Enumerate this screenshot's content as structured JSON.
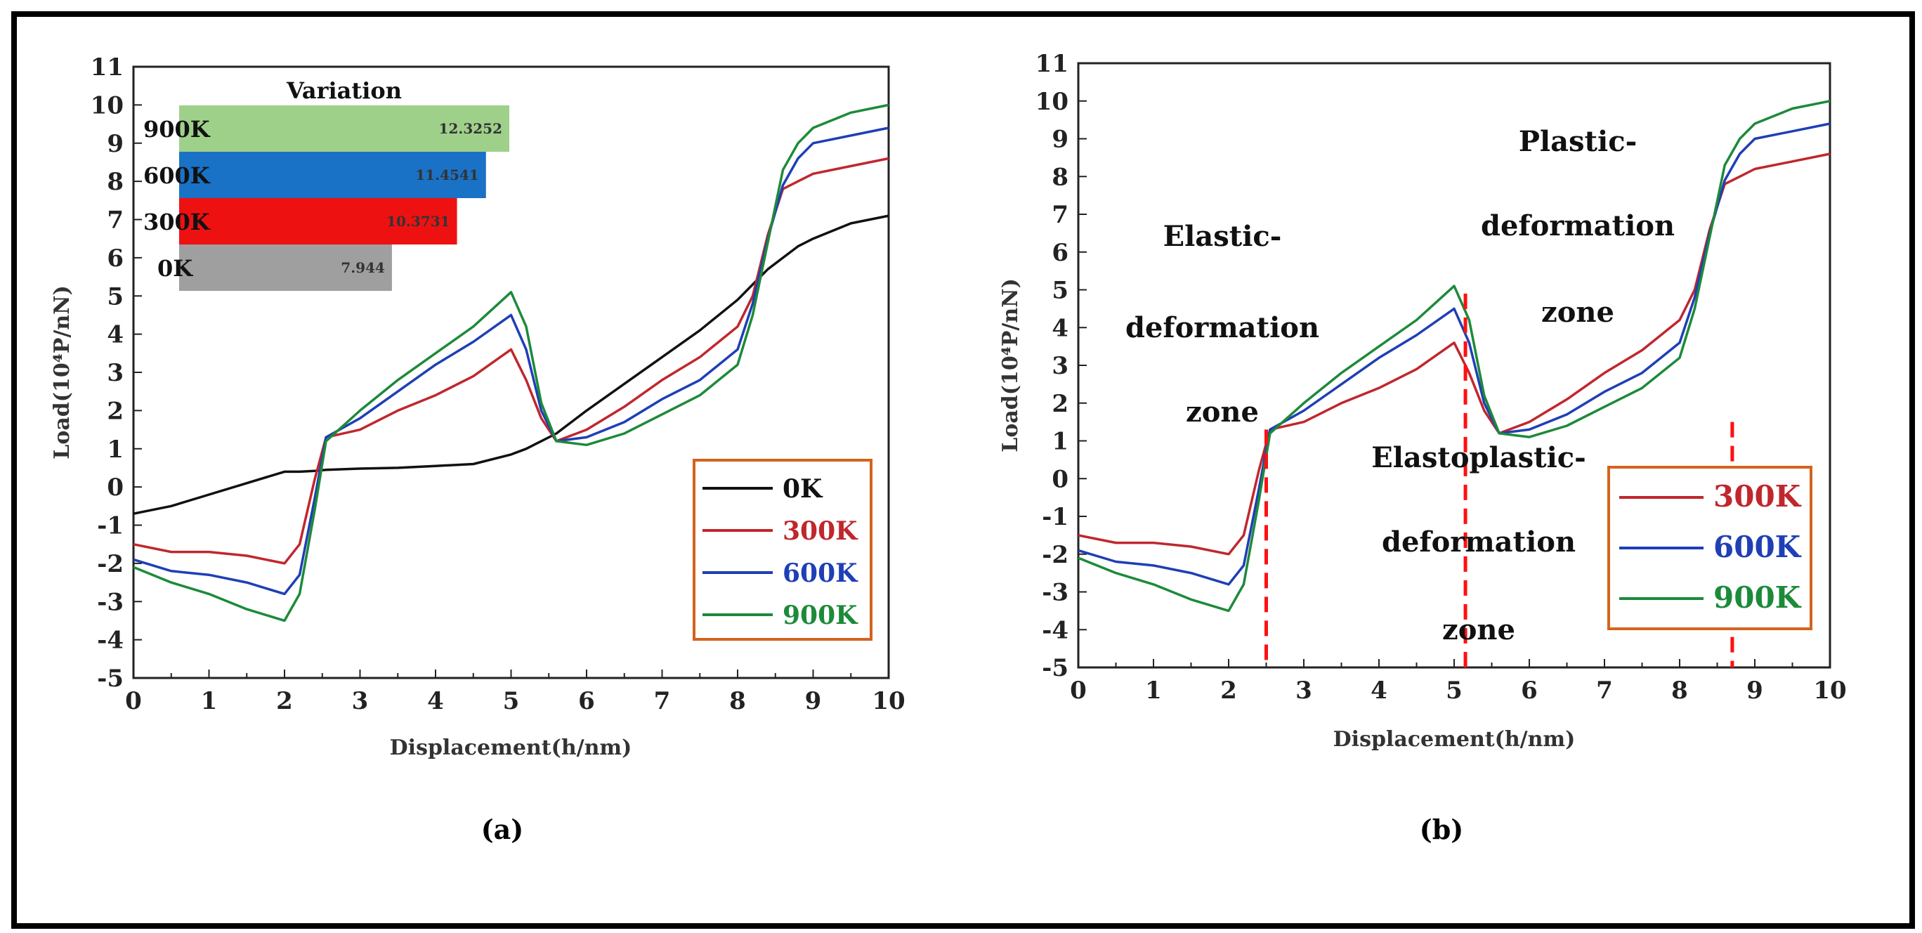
{
  "chart_data": [
    {
      "type": "line",
      "panel": "(a)",
      "xlabel": "Displacement(h/nm)",
      "ylabel": "Load(10⁴P/nN)",
      "xlim": [
        0,
        10
      ],
      "ylim": [
        -5,
        11
      ],
      "xticks": [
        0,
        1,
        2,
        3,
        4,
        5,
        6,
        7,
        8,
        9,
        10
      ],
      "yticks": [
        -5,
        -4,
        -3,
        -2,
        -1,
        0,
        1,
        2,
        3,
        4,
        5,
        6,
        7,
        8,
        9,
        10,
        11
      ],
      "legend_position": "bottom-right",
      "x": [
        0,
        0.5,
        1,
        1.5,
        2,
        2.2,
        2.4,
        2.55,
        3,
        3.5,
        4,
        4.5,
        5,
        5.2,
        5.4,
        5.6,
        6,
        6.5,
        7,
        7.5,
        8,
        8.2,
        8.4,
        8.6,
        8.8,
        9,
        9.5,
        10
      ],
      "series": [
        {
          "name": "0K",
          "color": "#111111",
          "values": [
            -0.7,
            -0.5,
            -0.2,
            0.1,
            0.4,
            0.4,
            0.42,
            0.45,
            0.48,
            0.5,
            0.55,
            0.6,
            0.85,
            1.0,
            1.2,
            1.4,
            2.0,
            2.7,
            3.4,
            4.1,
            4.9,
            5.3,
            5.7,
            6.0,
            6.3,
            6.5,
            6.9,
            7.1
          ]
        },
        {
          "name": "300K",
          "color": "#c0272d",
          "values": [
            -1.5,
            -1.7,
            -1.7,
            -1.8,
            -2.0,
            -1.5,
            0.2,
            1.3,
            1.5,
            2.0,
            2.4,
            2.9,
            3.6,
            2.8,
            1.8,
            1.2,
            1.5,
            2.1,
            2.8,
            3.4,
            4.2,
            5.0,
            6.6,
            7.8,
            8.0,
            8.2,
            8.4,
            8.6
          ]
        },
        {
          "name": "600K",
          "color": "#1f3fb5",
          "values": [
            -1.9,
            -2.2,
            -2.3,
            -2.5,
            -2.8,
            -2.3,
            -0.3,
            1.3,
            1.8,
            2.5,
            3.2,
            3.8,
            4.5,
            3.6,
            2.0,
            1.2,
            1.3,
            1.7,
            2.3,
            2.8,
            3.6,
            4.8,
            6.5,
            7.9,
            8.6,
            9.0,
            9.2,
            9.4
          ]
        },
        {
          "name": "900K",
          "color": "#1d8a3a",
          "values": [
            -2.1,
            -2.5,
            -2.8,
            -3.2,
            -3.5,
            -2.8,
            -0.6,
            1.2,
            2.0,
            2.8,
            3.5,
            4.2,
            5.1,
            4.2,
            2.2,
            1.2,
            1.1,
            1.4,
            1.9,
            2.4,
            3.2,
            4.5,
            6.4,
            8.3,
            9.0,
            9.4,
            9.8,
            10.0
          ]
        }
      ],
      "inset": {
        "title": "Variation",
        "type": "bar",
        "orientation": "horizontal",
        "categories": [
          "900K",
          "600K",
          "300K",
          "0K"
        ],
        "values": [
          12.3252,
          11.4541,
          10.3731,
          7.944
        ],
        "value_labels": [
          "12.3252",
          "11.4541",
          "10.3731",
          "7.944"
        ],
        "colors": [
          "#9fd08a",
          "#1a72c6",
          "#ee1111",
          "#9f9f9f"
        ]
      },
      "caption": "(a)"
    },
    {
      "type": "line",
      "panel": "(b)",
      "xlabel": "Displacement(h/nm)",
      "ylabel": "Load(10⁴P/nN)",
      "xlim": [
        0,
        10
      ],
      "ylim": [
        -5,
        11
      ],
      "xticks": [
        0,
        1,
        2,
        3,
        4,
        5,
        6,
        7,
        8,
        9,
        10
      ],
      "yticks": [
        -5,
        -4,
        -3,
        -2,
        -1,
        0,
        1,
        2,
        3,
        4,
        5,
        6,
        7,
        8,
        9,
        10,
        11
      ],
      "legend_position": "bottom-right",
      "x": [
        0,
        0.5,
        1,
        1.5,
        2,
        2.2,
        2.4,
        2.55,
        3,
        3.5,
        4,
        4.5,
        5,
        5.2,
        5.4,
        5.6,
        6,
        6.5,
        7,
        7.5,
        8,
        8.2,
        8.4,
        8.6,
        8.8,
        9,
        9.5,
        10
      ],
      "series": [
        {
          "name": "300K",
          "color": "#c0272d",
          "values": [
            -1.5,
            -1.7,
            -1.7,
            -1.8,
            -2.0,
            -1.5,
            0.2,
            1.3,
            1.5,
            2.0,
            2.4,
            2.9,
            3.6,
            2.8,
            1.8,
            1.2,
            1.5,
            2.1,
            2.8,
            3.4,
            4.2,
            5.0,
            6.6,
            7.8,
            8.0,
            8.2,
            8.4,
            8.6
          ]
        },
        {
          "name": "600K",
          "color": "#1f3fb5",
          "values": [
            -1.9,
            -2.2,
            -2.3,
            -2.5,
            -2.8,
            -2.3,
            -0.3,
            1.3,
            1.8,
            2.5,
            3.2,
            3.8,
            4.5,
            3.6,
            2.0,
            1.2,
            1.3,
            1.7,
            2.3,
            2.8,
            3.6,
            4.8,
            6.5,
            7.9,
            8.6,
            9.0,
            9.2,
            9.4
          ]
        },
        {
          "name": "900K",
          "color": "#1d8a3a",
          "values": [
            -2.1,
            -2.5,
            -2.8,
            -3.2,
            -3.5,
            -2.8,
            -0.6,
            1.2,
            2.0,
            2.8,
            3.5,
            4.2,
            5.1,
            4.2,
            2.2,
            1.2,
            1.1,
            1.4,
            1.9,
            2.4,
            3.2,
            4.5,
            6.4,
            8.3,
            9.0,
            9.4,
            9.8,
            10.0
          ]
        }
      ],
      "zone_boundaries": [
        {
          "x": 2.5,
          "y_top": 1.3
        },
        {
          "x": 5.15,
          "y_top": 4.9
        },
        {
          "x": 8.7,
          "y_top": 1.5
        }
      ],
      "annotations": {
        "elastic": [
          "Elastic-",
          "deformation",
          "zone"
        ],
        "elastoplastic": [
          "Elastoplastic-",
          "deformation",
          "zone"
        ],
        "plastic": [
          "Plastic-",
          "deformation",
          "zone"
        ]
      },
      "caption": "(b)"
    }
  ]
}
